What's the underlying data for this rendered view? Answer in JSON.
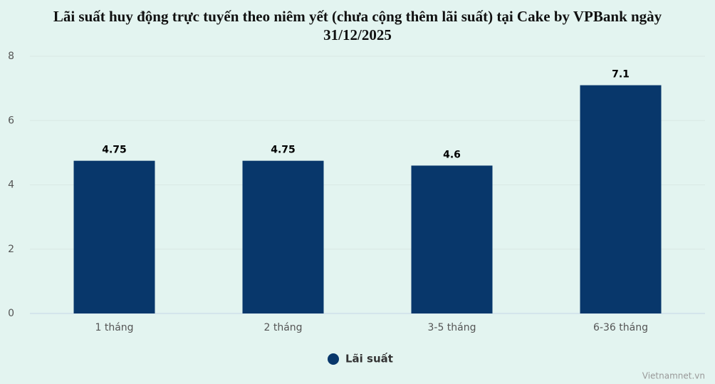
{
  "chart_data": {
    "type": "bar",
    "title": "Lãi suất huy động trực tuyến theo niêm yết (chưa cộng thêm lãi suất) tại Cake by VPBank ngày 31/12/2025",
    "categories": [
      "1 tháng",
      "2 tháng",
      "3-5 tháng",
      "6-36 tháng"
    ],
    "series": [
      {
        "name": "Lãi suất",
        "color": "#08376b",
        "values": [
          4.75,
          4.75,
          4.6,
          7.1
        ]
      }
    ],
    "ylim": [
      0,
      8
    ],
    "yticks": [
      0,
      2,
      4,
      6,
      8
    ],
    "grid": true,
    "legend": "bottom",
    "credit": "Vietnamnet.vn"
  }
}
